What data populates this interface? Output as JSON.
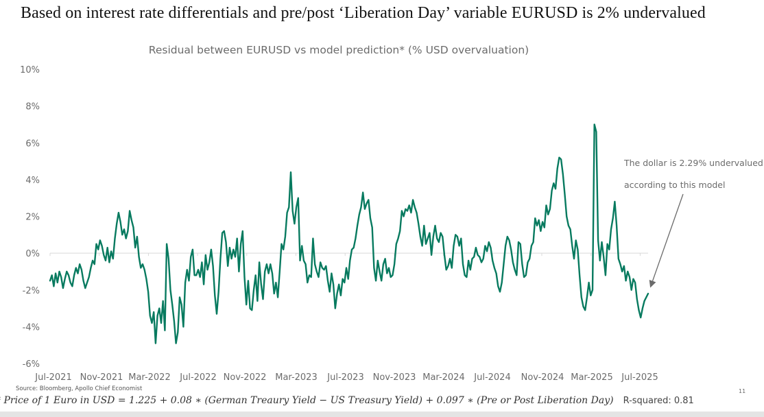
{
  "slide": {
    "title": "Based on interest rate differentials and pre/post ‘Liberation Day’ variable EURUSD is 2% undervalued",
    "page_number": "11"
  },
  "annotation": {
    "line1": "The dollar is 2.29% undervalued",
    "line2": "according to this model"
  },
  "source": "Source: Bloomberg, Apollo Chief Economist",
  "formula": {
    "prefix": "* ",
    "text": "Price of 1 Euro in USD = 1.225 + 0.08 ∗ (German Treaury Yield − US Treasury Yield) + 0.097 ∗ (Pre or Post Liberation Day)",
    "r_squared": "R-squared: 0.81"
  },
  "colors": {
    "line": "#077a5f",
    "zero_line": "#d9d9d9",
    "arrow": "#6b6b6b",
    "text_gray": "#6b6b6b"
  },
  "chart_data": {
    "type": "line",
    "title": "Residual between EURUSD vs model prediction* (% USD overvaluation)",
    "xlabel": "",
    "ylabel": "",
    "ylim": [
      -6,
      10
    ],
    "yticks": [
      10,
      8,
      6,
      4,
      2,
      0,
      -2,
      -4,
      -6
    ],
    "ytick_labels": [
      "10%",
      "8%",
      "6%",
      "4%",
      "2%",
      "0%",
      "-2%",
      "-4%",
      "-6%"
    ],
    "xticks": [
      "Jul-2021",
      "Nov-2021",
      "Mar-2022",
      "Jul-2022",
      "Nov-2022",
      "Mar-2023",
      "Jul-2023",
      "Nov-2023",
      "Mar-2024",
      "Jul-2024",
      "Nov-2024",
      "Mar-2025",
      "Jul-2025"
    ],
    "x_range": [
      "Jul-2021",
      "Aug-2025"
    ],
    "grid": false,
    "legend": "none",
    "series": [
      {
        "name": "Residual (% USD overvaluation)",
        "frequency": "approx. weekly, Jul-2021 to Aug-2025",
        "values": [
          -1.5,
          -1.2,
          -1.8,
          -1.1,
          -1.6,
          -1.0,
          -1.3,
          -1.9,
          -1.4,
          -1.0,
          -1.2,
          -1.6,
          -1.8,
          -1.2,
          -0.8,
          -1.1,
          -0.6,
          -0.9,
          -1.5,
          -1.9,
          -1.6,
          -1.3,
          -0.8,
          -0.4,
          -0.6,
          0.5,
          0.2,
          0.7,
          0.4,
          -0.1,
          -0.4,
          0.3,
          -0.5,
          0.1,
          -0.3,
          0.8,
          1.6,
          2.2,
          1.7,
          1.0,
          1.3,
          0.8,
          1.2,
          2.3,
          1.8,
          1.4,
          0.3,
          0.9,
          -0.2,
          -0.8,
          -0.6,
          -0.9,
          -1.4,
          -2.1,
          -3.4,
          -3.8,
          -3.2,
          -4.9,
          -3.4,
          -3.0,
          -3.8,
          -2.6,
          -4.2,
          0.5,
          -0.3,
          -2.0,
          -2.8,
          -3.7,
          -4.9,
          -4.3,
          -2.4,
          -2.8,
          -4.0,
          -1.6,
          -0.9,
          -1.5,
          -0.2,
          0.2,
          -1.2,
          -1.2,
          -0.9,
          -1.3,
          -0.5,
          -1.7,
          -0.1,
          -0.9,
          -0.5,
          0.2,
          -0.7,
          -2.3,
          -3.3,
          -2.1,
          -0.3,
          1.1,
          1.2,
          0.6,
          -0.7,
          0.3,
          -0.3,
          0.2,
          -0.2,
          0.8,
          -1.0,
          0.5,
          1.2,
          -1.3,
          -2.8,
          -1.5,
          -3.0,
          -3.1,
          -2.0,
          -1.2,
          -2.6,
          -0.5,
          -1.7,
          -2.5,
          -1.0,
          -0.6,
          -1.1,
          -0.6,
          -1.1,
          -2.2,
          -1.6,
          -2.4,
          -1.0,
          0.5,
          0.2,
          0.9,
          2.2,
          2.5,
          4.4,
          2.3,
          1.6,
          2.5,
          3.0,
          -0.4,
          0.4,
          -0.4,
          -0.6,
          -1.6,
          -1.2,
          -1.3,
          0.8,
          -0.6,
          -1.0,
          -1.3,
          -0.5,
          -0.8,
          -0.9,
          -0.7,
          -1.5,
          -2.1,
          -1.1,
          -1.7,
          -3.0,
          -2.2,
          -1.7,
          -2.3,
          -1.4,
          -1.6,
          -0.8,
          -1.4,
          -0.4,
          0.2,
          0.3,
          0.8,
          1.5,
          2.1,
          2.5,
          3.3,
          2.4,
          2.7,
          2.9,
          1.9,
          1.4,
          -0.8,
          -1.5,
          -0.4,
          -1.0,
          -1.5,
          -0.6,
          -0.3,
          -1.1,
          -0.8,
          -1.3,
          -1.2,
          -0.6,
          0.5,
          0.8,
          1.2,
          2.3,
          2.0,
          2.4,
          2.3,
          2.6,
          2.2,
          2.9,
          2.5,
          2.2,
          1.6,
          0.9,
          0.4,
          1.5,
          0.5,
          0.8,
          1.1,
          -0.1,
          0.9,
          1.5,
          0.8,
          0.6,
          1.1,
          0.9,
          -0.1,
          -0.9,
          -0.7,
          -0.3,
          -0.8,
          0.4,
          1.0,
          0.9,
          0.4,
          0.8,
          -0.6,
          -1.2,
          -1.3,
          -0.4,
          -0.9,
          -0.3,
          -0.2,
          0.3,
          -0.1,
          -0.2,
          -0.5,
          -0.3,
          0.4,
          0.1,
          0.6,
          0.3,
          -0.4,
          -0.8,
          -1.1,
          -1.8,
          -2.1,
          -1.6,
          -0.6,
          0.4,
          0.9,
          0.7,
          0.2,
          -0.5,
          -0.9,
          -1.2,
          0.6,
          0.5,
          -0.6,
          -1.3,
          -1.2,
          -0.5,
          -0.3,
          0.4,
          0.6,
          1.9,
          1.5,
          1.8,
          1.2,
          1.7,
          1.4,
          2.6,
          2.1,
          2.4,
          3.4,
          3.8,
          3.5,
          4.6,
          5.2,
          5.1,
          4.3,
          3.2,
          2.0,
          1.5,
          1.3,
          0.4,
          -0.3,
          0.7,
          0.2,
          -1.2,
          -2.4,
          -2.9,
          -3.1,
          -2.4,
          -1.6,
          -2.3,
          -2.0,
          7.0,
          6.6,
          0.7,
          -0.4,
          0.6,
          -0.2,
          -1.2,
          0.5,
          0.2,
          1.3,
          1.9,
          2.8,
          1.5,
          -0.3,
          -0.6,
          -1.0,
          -0.7,
          -1.5,
          -1.0,
          -1.3,
          -2.0,
          -1.4,
          -1.6,
          -2.5,
          -3.1,
          -3.5,
          -3.0,
          -2.6,
          -2.4,
          -2.2
        ]
      }
    ]
  }
}
